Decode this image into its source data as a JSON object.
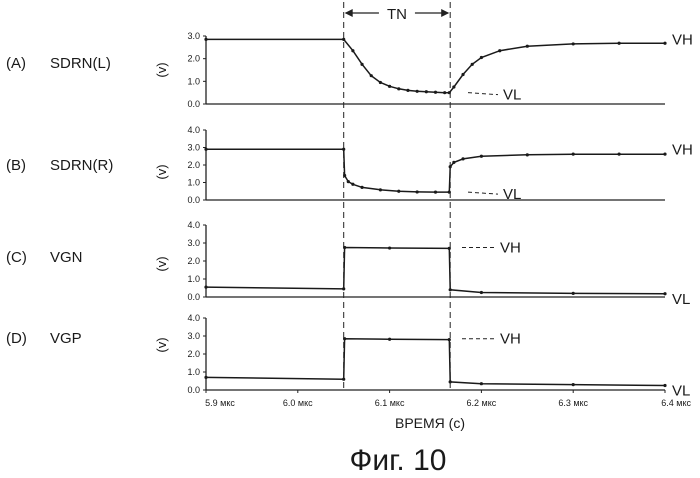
{
  "figure": {
    "caption": "Фиг. 10",
    "interval_label": "TN",
    "xlabel": "ВРЕМЯ (с)",
    "x_tick_labels": [
      "5.9 мкс",
      "6.0 мкс",
      "6.1 мкс",
      "6.2 мкс",
      "6.3 мкс",
      "6.4 мкс"
    ]
  },
  "chart_data": [
    {
      "type": "line",
      "panel": "(A)",
      "signal": "SDRN(L)",
      "ylabel": "(v)",
      "xlim": [
        5.9,
        6.4
      ],
      "ylim": [
        0,
        3.0
      ],
      "y_tick_labels": [
        "0.0",
        "1.0",
        "2.0",
        "3.0"
      ],
      "level_labels": {
        "high": "VH",
        "low": "VL"
      },
      "series": [
        {
          "x": [
            5.9,
            6.05,
            6.06,
            6.07,
            6.08,
            6.09,
            6.1,
            6.11,
            6.12,
            6.13,
            6.14,
            6.15,
            6.16,
            6.165,
            6.17,
            6.18,
            6.19,
            6.2,
            6.22,
            6.25,
            6.3,
            6.35,
            6.4
          ],
          "y": [
            2.85,
            2.85,
            2.35,
            1.75,
            1.25,
            0.95,
            0.78,
            0.67,
            0.6,
            0.56,
            0.54,
            0.52,
            0.5,
            0.5,
            0.75,
            1.3,
            1.75,
            2.05,
            2.35,
            2.55,
            2.65,
            2.68,
            2.68
          ]
        }
      ]
    },
    {
      "type": "line",
      "panel": "(B)",
      "signal": "SDRN(R)",
      "ylabel": "(v)",
      "xlim": [
        5.9,
        6.4
      ],
      "ylim": [
        0,
        4.0
      ],
      "y_tick_labels": [
        "0.0",
        "1.0",
        "2.0",
        "3.0",
        "4.0"
      ],
      "level_labels": {
        "high": "VH",
        "low": "VL"
      },
      "series": [
        {
          "x": [
            5.9,
            6.05,
            6.051,
            6.055,
            6.06,
            6.07,
            6.09,
            6.11,
            6.13,
            6.15,
            6.165,
            6.166,
            6.17,
            6.18,
            6.2,
            6.25,
            6.3,
            6.35,
            6.4
          ],
          "y": [
            2.9,
            2.9,
            1.4,
            1.05,
            0.9,
            0.72,
            0.58,
            0.5,
            0.46,
            0.45,
            0.45,
            1.9,
            2.15,
            2.35,
            2.5,
            2.58,
            2.62,
            2.62,
            2.62
          ]
        }
      ]
    },
    {
      "type": "line",
      "panel": "(C)",
      "signal": "VGN",
      "ylabel": "(v)",
      "xlim": [
        5.9,
        6.4
      ],
      "ylim": [
        0,
        4.0
      ],
      "y_tick_labels": [
        "0.0",
        "1.0",
        "2.0",
        "3.0",
        "4.0"
      ],
      "level_labels": {
        "high": "VH",
        "low": "VL"
      },
      "series": [
        {
          "x": [
            5.9,
            6.05,
            6.051,
            6.1,
            6.165,
            6.166,
            6.2,
            6.3,
            6.4
          ],
          "y": [
            0.55,
            0.45,
            2.75,
            2.72,
            2.7,
            0.4,
            0.25,
            0.2,
            0.18
          ]
        }
      ]
    },
    {
      "type": "line",
      "panel": "(D)",
      "signal": "VGP",
      "ylabel": "(v)",
      "xlim": [
        5.9,
        6.4
      ],
      "ylim": [
        0,
        4.0
      ],
      "y_tick_labels": [
        "0.0",
        "1.0",
        "2.0",
        "3.0",
        "4.0"
      ],
      "level_labels": {
        "high": "VH",
        "low": "VL"
      },
      "series": [
        {
          "x": [
            5.9,
            6.05,
            6.051,
            6.1,
            6.165,
            6.166,
            6.2,
            6.3,
            6.4
          ],
          "y": [
            0.7,
            0.6,
            2.85,
            2.82,
            2.8,
            0.45,
            0.35,
            0.3,
            0.25
          ]
        }
      ]
    }
  ]
}
